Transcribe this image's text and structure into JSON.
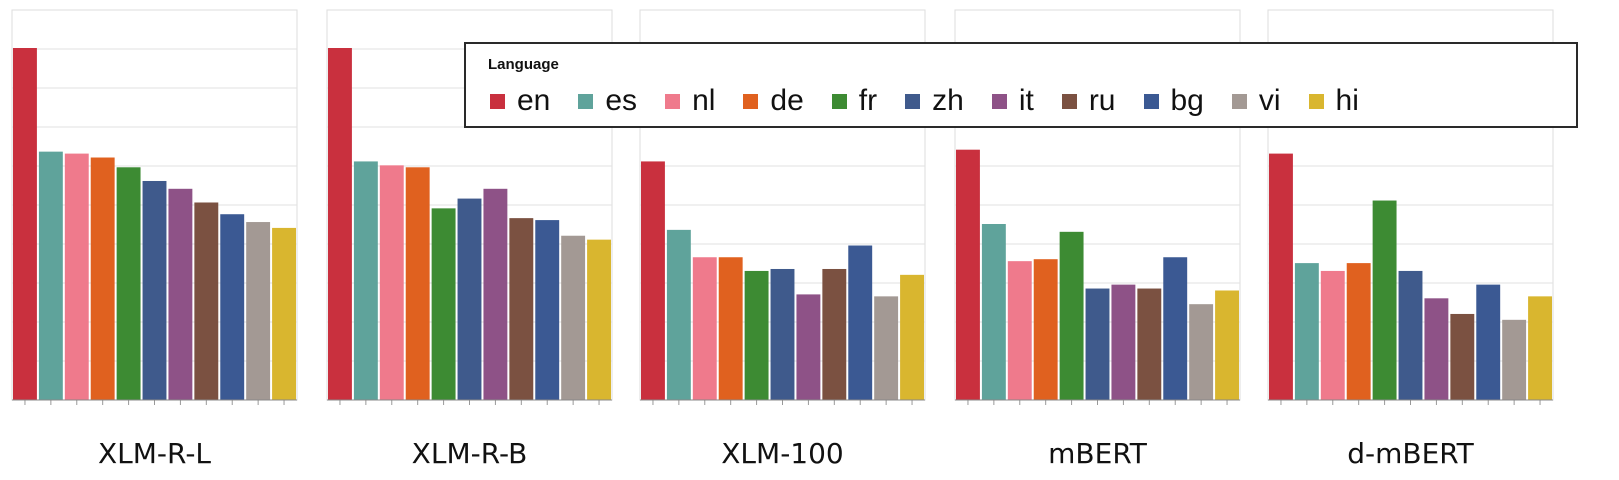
{
  "chart_data": {
    "type": "bar",
    "legend_title": "Language",
    "legend_placement": "top-right",
    "grid": true,
    "languages": [
      "en",
      "es",
      "nl",
      "de",
      "fr",
      "zh",
      "it",
      "ru",
      "bg",
      "vi",
      "hi"
    ],
    "colors": {
      "en": "#c9303e",
      "es": "#5fa39b",
      "nl": "#ef7a8c",
      "de": "#e0611f",
      "fr": "#3d8b33",
      "zh": "#3f5a8c",
      "it": "#8e5287",
      "ru": "#7b5141",
      "bg": "#3b5993",
      "vi": "#a39994",
      "hi": "#d9b62f"
    },
    "ylim": [
      0,
      9
    ],
    "panels": [
      {
        "label": "XLM-R-L",
        "values": [
          9.0,
          6.35,
          6.3,
          6.2,
          5.95,
          5.6,
          5.4,
          5.05,
          4.75,
          4.55,
          4.4
        ]
      },
      {
        "label": "XLM-R-B",
        "values": [
          9.0,
          6.1,
          6.0,
          5.95,
          4.9,
          5.15,
          5.4,
          4.65,
          4.6,
          4.2,
          4.1
        ]
      },
      {
        "label": "XLM-100",
        "values": [
          6.1,
          4.35,
          3.65,
          3.65,
          3.3,
          3.35,
          2.7,
          3.35,
          3.95,
          2.65,
          3.2
        ]
      },
      {
        "label": "mBERT",
        "values": [
          6.4,
          4.5,
          3.55,
          3.6,
          4.3,
          2.85,
          2.95,
          2.85,
          3.65,
          2.45,
          2.8
        ]
      },
      {
        "label": "d-mBERT",
        "values": [
          6.3,
          3.5,
          3.3,
          3.5,
          5.1,
          3.3,
          2.6,
          2.2,
          2.95,
          2.05,
          2.65
        ]
      }
    ]
  }
}
